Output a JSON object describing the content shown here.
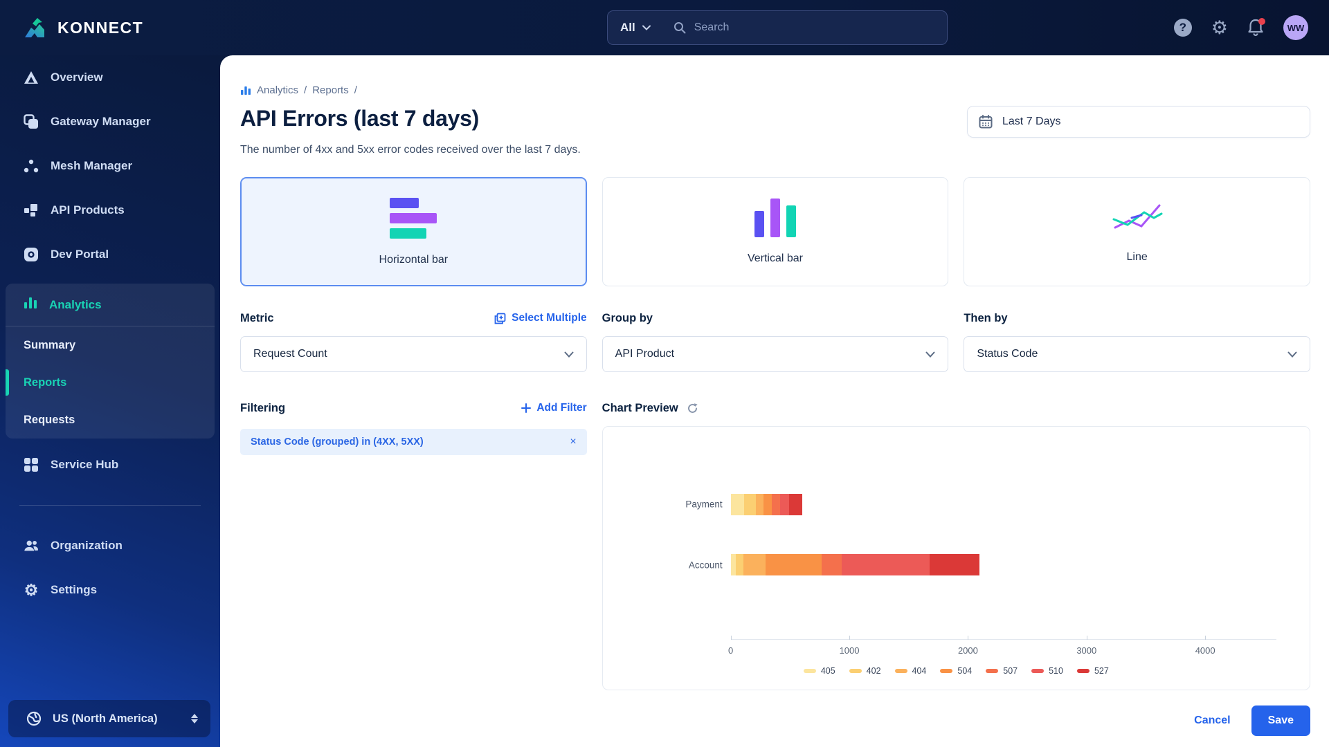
{
  "header": {
    "brand": "KONNECT",
    "search": {
      "scope": "All",
      "placeholder": "Search"
    },
    "avatar_initials": "WW"
  },
  "sidebar": {
    "items": [
      {
        "label": "Overview"
      },
      {
        "label": "Gateway Manager"
      },
      {
        "label": "Mesh Manager"
      },
      {
        "label": "API Products"
      },
      {
        "label": "Dev Portal"
      }
    ],
    "analytics": {
      "label": "Analytics",
      "children": [
        {
          "label": "Summary",
          "active": false
        },
        {
          "label": "Reports",
          "active": true
        },
        {
          "label": "Requests",
          "active": false
        }
      ]
    },
    "service_hub": {
      "label": "Service Hub"
    },
    "footer_items": [
      {
        "label": "Organization"
      },
      {
        "label": "Settings"
      }
    ],
    "region": "US (North America)"
  },
  "main": {
    "breadcrumb": {
      "part1": "Analytics",
      "sep1": "/",
      "part2": "Reports",
      "sep2": "/"
    },
    "title": "API Errors (last 7 days)",
    "description": "The number of 4xx and 5xx error codes received over the last 7 days.",
    "date_range": "Last 7 Days",
    "chart_types": {
      "horizontal": "Horizontal bar",
      "vertical": "Vertical bar",
      "line": "Line"
    },
    "metric": {
      "label": "Metric",
      "action": "Select Multiple",
      "value": "Request Count"
    },
    "group_by": {
      "label": "Group by",
      "value": "API Product"
    },
    "then_by": {
      "label": "Then by",
      "value": "Status Code"
    },
    "filtering": {
      "label": "Filtering",
      "action": "Add Filter",
      "chip": "Status Code (grouped) in (4XX, 5XX)",
      "chip_close": "×"
    },
    "chart_preview_label": "Chart Preview",
    "actions": {
      "cancel": "Cancel",
      "save": "Save"
    }
  },
  "chart_data": {
    "type": "bar",
    "orientation": "horizontal",
    "stacked": true,
    "title": "Chart Preview",
    "categories": [
      "Payment",
      "Account"
    ],
    "series": [
      {
        "name": "405",
        "color": "#FCE59E",
        "values": [
          110,
          45
        ]
      },
      {
        "name": "402",
        "color": "#FBCF72",
        "values": [
          100,
          65
        ]
      },
      {
        "name": "404",
        "color": "#FBB15C",
        "values": [
          65,
          185
        ]
      },
      {
        "name": "504",
        "color": "#F99245",
        "values": [
          70,
          470
        ]
      },
      {
        "name": "507",
        "color": "#F4704C",
        "values": [
          70,
          170
        ]
      },
      {
        "name": "510",
        "color": "#EC5A57",
        "values": [
          75,
          740
        ]
      },
      {
        "name": "527",
        "color": "#DB3937",
        "values": [
          115,
          425
        ]
      }
    ],
    "totals": {
      "Payment": 605,
      "Account": 2100
    },
    "xticks": [
      0,
      1000,
      2000,
      3000,
      4000
    ],
    "xmax": 4600,
    "xlabel": "",
    "ylabel": "",
    "legend_position": "bottom",
    "grid": false
  }
}
